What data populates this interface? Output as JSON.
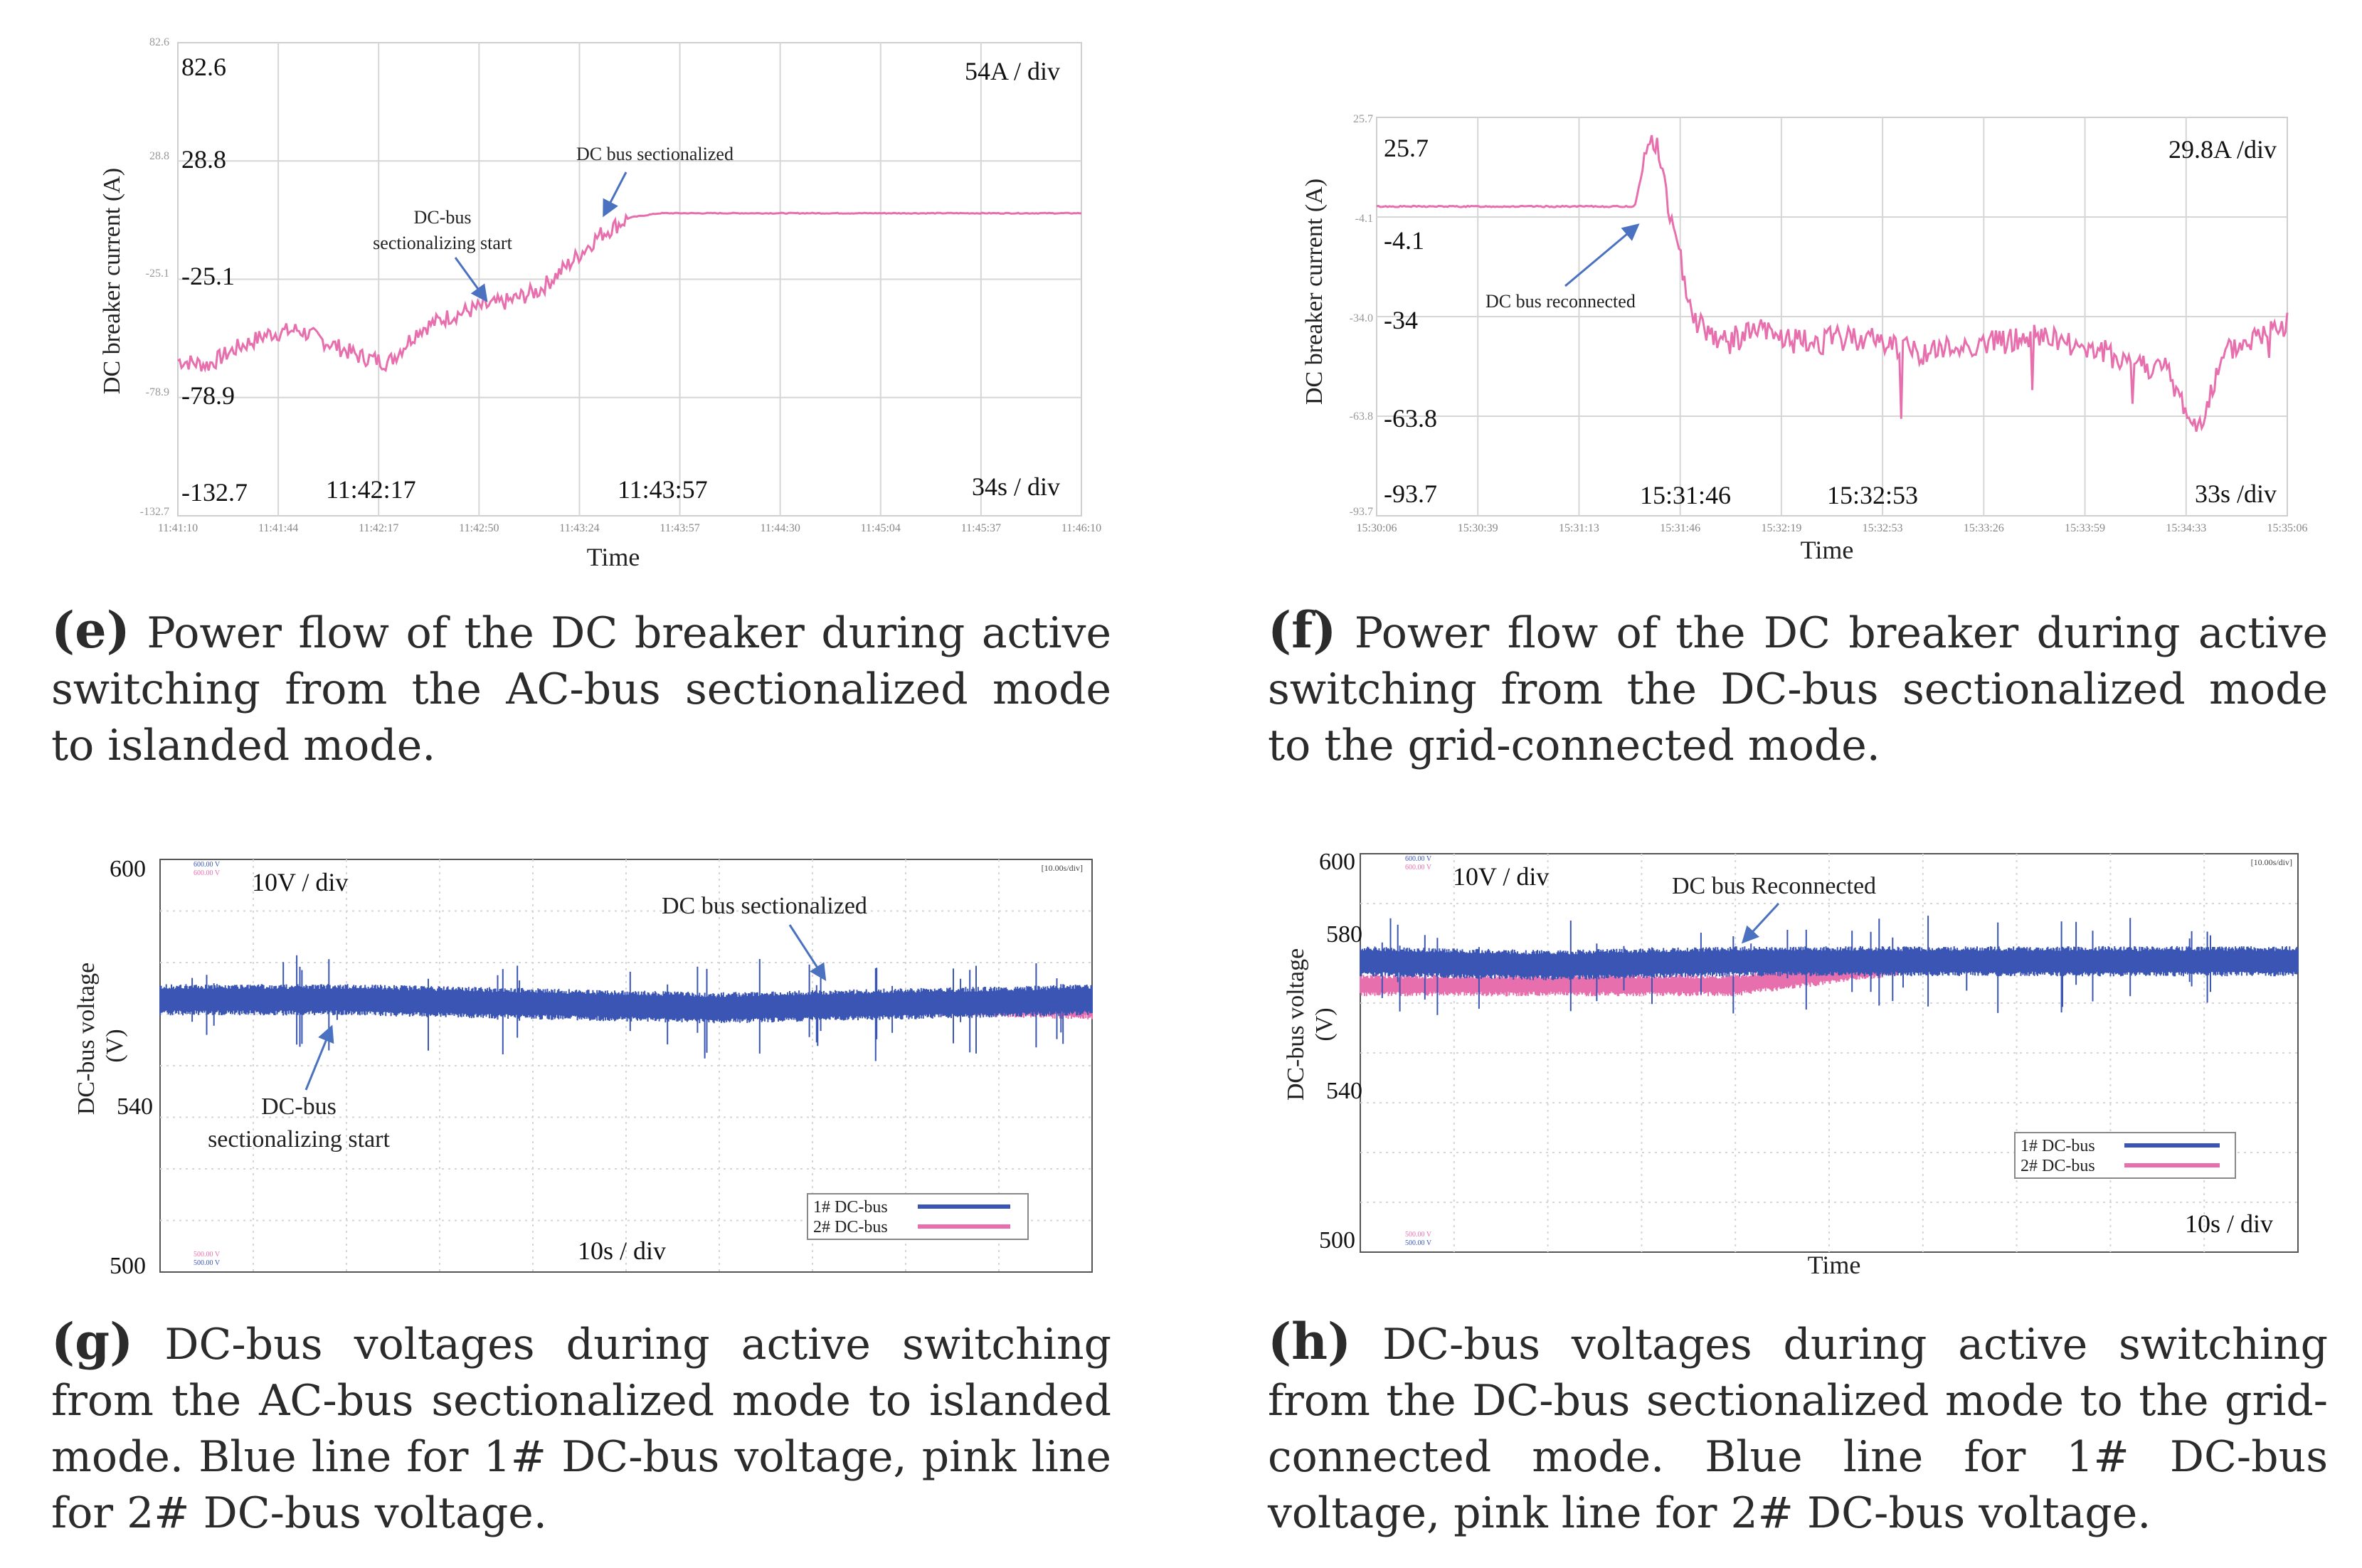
{
  "panels": {
    "e": {
      "letter": "e",
      "caption": "Power flow of the DC breaker during active switching from the AC-bus sectionalized mode to islanded mode.",
      "ylabel": "DC breaker current (A)",
      "xlabel": "Time",
      "scale_y": "54A / div",
      "scale_x": "34s / div",
      "small_y_ticks": [
        "82.6",
        "28.8",
        "-25.1",
        "-78.9",
        "-132.7"
      ],
      "big_y_ticks": [
        "82.6",
        "28.8",
        "-25.1",
        "-78.9",
        "-132.7"
      ],
      "x_ticks": [
        "11:41:10",
        "11:41:44",
        "11:42:17",
        "11:42:50",
        "11:43:24",
        "11:43:57",
        "11:44:30",
        "11:45:04",
        "11:45:37",
        "11:46:10"
      ],
      "big_x_labels": [
        "11:42:17",
        "11:43:57"
      ],
      "annot_1": "DC bus sectionalized",
      "annot_2a": "DC-bus",
      "annot_2b": "sectionalizing start"
    },
    "f": {
      "letter": "f",
      "caption": "Power flow of the DC breaker during active switching from the DC-bus sectionalized mode to the grid-connected mode.",
      "ylabel": "DC breaker current (A)",
      "xlabel": "Time",
      "scale_y": "29.8A /div",
      "scale_x": "33s /div",
      "small_y_ticks": [
        "25.7",
        "-4.1",
        "-34.0",
        "-63.8",
        "-93.7"
      ],
      "big_y_ticks": [
        "25.7",
        "-4.1",
        "-34",
        "-63.8",
        "-93.7"
      ],
      "x_ticks": [
        "15:30:06",
        "15:30:39",
        "15:31:13",
        "15:31:46",
        "15:32:19",
        "15:32:53",
        "15:33:26",
        "15:33:59",
        "15:34:33",
        "15:35:06"
      ],
      "big_x_labels": [
        "15:31:46",
        "15:32:53"
      ],
      "annot_1": "DC bus reconnected"
    },
    "g": {
      "letter": "g",
      "caption": "DC-bus voltages during active switching from the AC-bus sectionalized mode to islanded mode. Blue line for 1# DC-bus voltage, pink line for 2# DC-bus voltage.",
      "ylabel_a": "DC-bus voltage",
      "ylabel_b": "(V)",
      "y_ticks": [
        "600",
        "540",
        "500"
      ],
      "scale_y": "10V / div",
      "scale_x": "10s / div",
      "annot_1": "DC bus sectionalized",
      "annot_2a": "DC-bus",
      "annot_2b": "sectionalizing start",
      "legend": [
        "1# DC-bus",
        "2# DC-bus"
      ],
      "corner_tag": "[10.00s/div]",
      "mini_ch1": "600.00 V",
      "mini_ch2": "600.00 V",
      "mini_lo1": "500.00 V",
      "mini_lo2": "500.00 V"
    },
    "h": {
      "letter": "h",
      "caption": "DC-bus voltages during active switching from the DC-bus sectionalized mode to the grid-connected mode. Blue line for 1# DC-bus voltage, pink line for 2# DC-bus voltage.",
      "ylabel_a": "DC-bus voltage",
      "ylabel_b": "(V)",
      "y_ticks": [
        "600",
        "580",
        "540",
        "500"
      ],
      "scale_y": "10V / div",
      "scale_x": "10s / div",
      "xlabel": "Time",
      "annot_1": "DC bus Reconnected",
      "legend": [
        "1# DC-bus",
        "2# DC-bus"
      ],
      "corner_tag": "[10.00s/div]",
      "mini_ch1": "600.00 V",
      "mini_ch2": "600.00 V",
      "mini_lo1": "500.00 V",
      "mini_lo2": "500.00 V"
    }
  },
  "colors": {
    "blue": "#3a55b4",
    "pink": "#e86fae",
    "grid": "#d6d6d6",
    "arrow": "#4a72c0"
  },
  "chart_data": [
    {
      "id": "e",
      "type": "line",
      "title": "Power flow of the DC breaker",
      "xlabel": "Time",
      "ylabel": "DC breaker current (A)",
      "ylim": [
        -132.7,
        82.6
      ],
      "x_ticks": [
        "11:41:10",
        "11:41:44",
        "11:42:17",
        "11:42:50",
        "11:43:24",
        "11:43:57",
        "11:44:30",
        "11:45:04",
        "11:45:37",
        "11:46:10"
      ],
      "x_range": [
        0,
        300
      ],
      "series": [
        {
          "name": "DC breaker current",
          "x": [
            0,
            10,
            20,
            30,
            40,
            50,
            60,
            70,
            80,
            90,
            100,
            110,
            120,
            130,
            140,
            150,
            160,
            170,
            180,
            190,
            200,
            210,
            220,
            230,
            240,
            250,
            260,
            270,
            280,
            290,
            300
          ],
          "values": [
            -62,
            -64,
            -56,
            -50,
            -48,
            -54,
            -60,
            -63,
            -48,
            -42,
            -38,
            -35,
            -30,
            -18,
            -5,
            3,
            5,
            5,
            5,
            5,
            5,
            5,
            5,
            5,
            5,
            5,
            5,
            5,
            5,
            5,
            5
          ]
        }
      ]
    },
    {
      "id": "f",
      "type": "line",
      "title": "Power flow of the DC breaker",
      "xlabel": "Time",
      "ylabel": "DC breaker current (A)",
      "ylim": [
        -93.7,
        25.7
      ],
      "x_ticks": [
        "15:30:06",
        "15:30:39",
        "15:31:13",
        "15:31:46",
        "15:32:19",
        "15:32:53",
        "15:33:26",
        "15:33:59",
        "15:34:33",
        "15:35:06"
      ],
      "x_range": [
        0,
        300
      ],
      "series": [
        {
          "name": "DC breaker current",
          "x": [
            0,
            30,
            60,
            85,
            90,
            93,
            98,
            105,
            115,
            125,
            140,
            160,
            180,
            200,
            220,
            240,
            260,
            270,
            280,
            290,
            300
          ],
          "values": [
            -1,
            -1,
            -1,
            -1,
            20,
            15,
            -10,
            -35,
            -42,
            -38,
            -42,
            -40,
            -45,
            -42,
            -40,
            -45,
            -50,
            -68,
            -45,
            -40,
            -36
          ]
        }
      ]
    },
    {
      "id": "g",
      "type": "line",
      "title": "DC-bus voltages",
      "ylabel": "DC-bus voltage (V)",
      "ylim": [
        500,
        600
      ],
      "series": [
        {
          "name": "1# DC-bus",
          "x": [
            0,
            20,
            40,
            60,
            80,
            100
          ],
          "values": [
            566,
            566,
            565,
            564,
            565,
            566
          ]
        },
        {
          "name": "2# DC-bus",
          "x": [
            0,
            20,
            40,
            60,
            80,
            100
          ],
          "values": [
            566,
            566,
            565,
            564,
            565,
            564
          ]
        }
      ]
    },
    {
      "id": "h",
      "type": "line",
      "title": "DC-bus voltages",
      "xlabel": "Time",
      "ylabel": "DC-bus voltage (V)",
      "ylim": [
        500,
        600
      ],
      "series": [
        {
          "name": "1# DC-bus",
          "x": [
            0,
            20,
            40,
            60,
            80,
            100
          ],
          "values": [
            573,
            572,
            573,
            573,
            573,
            573
          ]
        },
        {
          "name": "2# DC-bus",
          "x": [
            0,
            20,
            40,
            60,
            80,
            100
          ],
          "values": [
            567,
            567,
            567,
            573,
            573,
            573
          ]
        }
      ]
    }
  ]
}
